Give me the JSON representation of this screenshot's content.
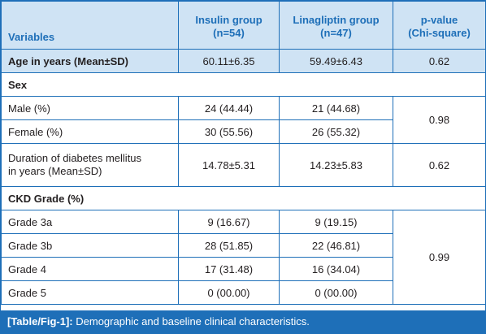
{
  "header": {
    "variables": "Variables",
    "insulin_line1": "Insulin group",
    "insulin_line2": "(n=54)",
    "lina_line1": "Linagliptin group",
    "lina_line2": "(n=47)",
    "p_line1": "p-value",
    "p_line2": "(Chi-square)"
  },
  "rows": {
    "age": {
      "label": "Age in years (Mean±SD)",
      "insulin": "60.11±6.35",
      "lina": "59.49±6.43",
      "p": "0.62"
    },
    "sex_header": "Sex",
    "male": {
      "label": "Male (%)",
      "insulin": "24 (44.44)",
      "lina": "21 (44.68)"
    },
    "female": {
      "label": "Female (%)",
      "insulin": "30 (55.56)",
      "lina": "26 (55.32)"
    },
    "sex_p": "0.98",
    "duration": {
      "label_line1": "Duration of diabetes mellitus",
      "label_line2": "in years (Mean±SD)",
      "insulin": "14.78±5.31",
      "lina": "14.23±5.83",
      "p": "0.62"
    },
    "ckd_header": "CKD Grade (%)",
    "grade3a": {
      "label": "Grade 3a",
      "insulin": "9 (16.67)",
      "lina": "9 (19.15)"
    },
    "grade3b": {
      "label": "Grade 3b",
      "insulin": "28 (51.85)",
      "lina": "22 (46.81)"
    },
    "grade4": {
      "label": "Grade 4",
      "insulin": "17 (31.48)",
      "lina": "16 (34.04)"
    },
    "grade5": {
      "label": "Grade 5",
      "insulin": "0 (00.00)",
      "lina": "0 (00.00)"
    },
    "ckd_p": "0.99"
  },
  "caption": {
    "ref": "[Table/Fig-1]:",
    "text": " Demographic and baseline clinical characteristics."
  },
  "colors": {
    "accent": "#1e6fb8",
    "header_bg": "#cfe3f4"
  }
}
